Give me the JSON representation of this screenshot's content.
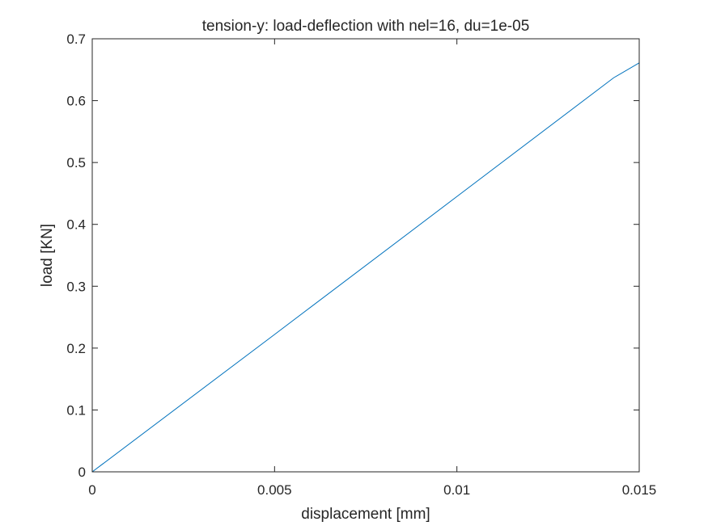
{
  "chart_data": {
    "type": "line",
    "title": "tension-y: load-deflection with nel=16, du=1e-05",
    "xlabel": "displacement [mm]",
    "ylabel": "load [KN]",
    "xlim": [
      0,
      0.015
    ],
    "ylim": [
      0,
      0.7
    ],
    "xticks": [
      0,
      0.005,
      0.01,
      0.015
    ],
    "xtick_labels": [
      "0",
      "0.005",
      "0.01",
      "0.015"
    ],
    "yticks": [
      0,
      0.1,
      0.2,
      0.3,
      0.4,
      0.5,
      0.6,
      0.7
    ],
    "ytick_labels": [
      "0",
      "0.1",
      "0.2",
      "0.3",
      "0.4",
      "0.5",
      "0.6",
      "0.7"
    ],
    "grid": false,
    "box": true,
    "line_color": "#0072BD",
    "axis_color": "#262626",
    "series": [
      {
        "x": [
          0,
          0.005,
          0.01,
          0.0143,
          0.015
        ],
        "y": [
          0,
          0.222,
          0.445,
          0.637,
          0.661
        ]
      }
    ]
  }
}
